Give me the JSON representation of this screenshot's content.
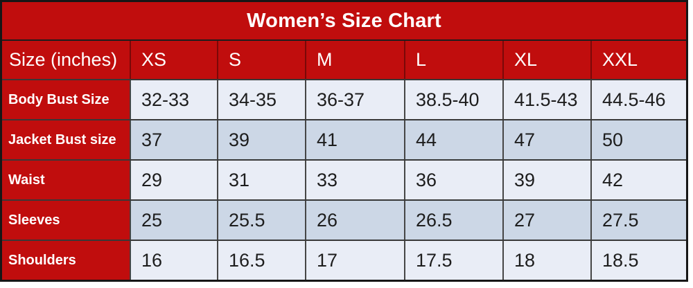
{
  "title": "Women’s Size Chart",
  "table": {
    "header": {
      "label": "Size (inches)",
      "sizes": [
        "XS",
        "S",
        "M",
        "L",
        "XL",
        "XXL"
      ]
    },
    "rows": [
      {
        "label": "Body Bust Size",
        "values": [
          "32-33",
          "34-35",
          "36-37",
          "38.5-40",
          "41.5-43",
          "44.5-46"
        ]
      },
      {
        "label": "Jacket Bust size",
        "values": [
          "37",
          "39",
          "41",
          "44",
          "47",
          "50"
        ]
      },
      {
        "label": "Waist",
        "values": [
          "29",
          "31",
          "33",
          "36",
          "39",
          "42"
        ]
      },
      {
        "label": "Sleeves",
        "values": [
          "25",
          "25.5",
          "26",
          "26.5",
          "27",
          "27.5"
        ]
      },
      {
        "label": "Shoulders",
        "values": [
          "16",
          "16.5",
          "17",
          "17.5",
          "18",
          "18.5"
        ]
      }
    ]
  },
  "chart_data": {
    "type": "table",
    "title": "Women’s Size Chart",
    "unit": "inches",
    "columns": [
      "Size (inches)",
      "XS",
      "S",
      "M",
      "L",
      "XL",
      "XXL"
    ],
    "rows": [
      [
        "Body Bust Size",
        "32-33",
        "34-35",
        "36-37",
        "38.5-40",
        "41.5-43",
        "44.5-46"
      ],
      [
        "Jacket Bust size",
        "37",
        "39",
        "41",
        "44",
        "47",
        "50"
      ],
      [
        "Waist",
        "29",
        "31",
        "33",
        "36",
        "39",
        "42"
      ],
      [
        "Sleeves",
        "25",
        "25.5",
        "26",
        "26.5",
        "27",
        "27.5"
      ],
      [
        "Shoulders",
        "16",
        "16.5",
        "17",
        "17.5",
        "18",
        "18.5"
      ]
    ]
  },
  "colors": {
    "accent_red": "#c00d0d",
    "row_light": "#e9edf6",
    "row_dark": "#ccd7e6",
    "border_outer": "#161616",
    "border_inner": "#454545",
    "text_on_red": "#ffffff",
    "text_data": "#1d1d1d",
    "page_background": "#ffffff"
  }
}
